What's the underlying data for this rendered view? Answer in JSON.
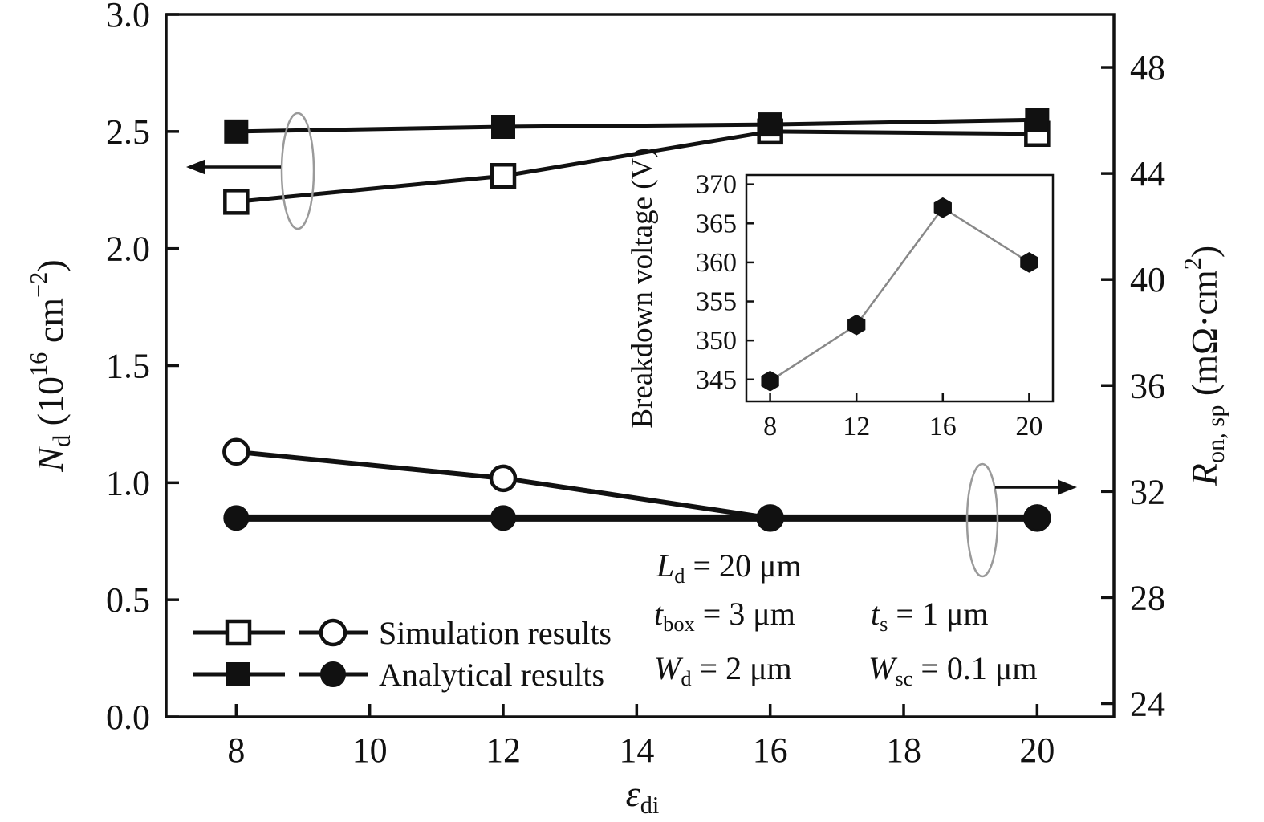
{
  "figure": {
    "background": "#ffffff",
    "ink": "#111111",
    "muted_outline": "#9a9a9a",
    "inset_line": "#888888"
  },
  "chart_data": [
    {
      "id": "main",
      "type": "line",
      "x_axis": {
        "label_segments": [
          {
            "t": "ε",
            "s": "i"
          },
          {
            "t": "di",
            "s": "sub"
          }
        ],
        "min": 6.95,
        "max": 21.15,
        "ticks": [
          "8",
          "10",
          "12",
          "14",
          "16",
          "18",
          "20"
        ]
      },
      "y_left": {
        "label_segments": [
          {
            "t": "N",
            "s": "i"
          },
          {
            "t": "d",
            "s": "sub"
          },
          {
            "t": " (10",
            "s": "n"
          },
          {
            "t": "16",
            "s": "sup"
          },
          {
            "t": " cm",
            "s": "n"
          },
          {
            "t": "−2",
            "s": "sup"
          },
          {
            "t": ")",
            "s": "n"
          }
        ],
        "min": 0,
        "max": 3,
        "ticks": [
          "0.0",
          "0.5",
          "1.0",
          "1.5",
          "2.0",
          "2.5",
          "3.0"
        ]
      },
      "y_right": {
        "label_segments": [
          {
            "t": "R",
            "s": "i"
          },
          {
            "t": "on, sp",
            "s": "sub"
          },
          {
            "t": " (mΩ·cm",
            "s": "n"
          },
          {
            "t": "2",
            "s": "sup"
          },
          {
            "t": ")",
            "s": "n"
          }
        ],
        "min": 23.5,
        "max": 50,
        "ticks": [
          "24",
          "28",
          "32",
          "36",
          "40",
          "44",
          "48"
        ]
      },
      "series": [
        {
          "name": "nd-simulation",
          "axis": "left",
          "marker": "square-open",
          "line_width": 5,
          "x": [
            8,
            12,
            16,
            20
          ],
          "y": [
            2.2,
            2.31,
            2.5,
            2.49
          ]
        },
        {
          "name": "nd-analytical",
          "axis": "left",
          "marker": "square-filled",
          "line_width": 5,
          "x": [
            8,
            12,
            16,
            20
          ],
          "y": [
            2.5,
            2.52,
            2.53,
            2.55
          ]
        },
        {
          "name": "ron-simulation",
          "axis": "right",
          "marker": "circle-open",
          "line_width": 6,
          "x": [
            8,
            12,
            16,
            20
          ],
          "y": [
            33.5,
            32.5,
            31.0,
            31.0
          ]
        },
        {
          "name": "ron-analytical",
          "axis": "right",
          "marker": "circle-filled",
          "line_width": 9,
          "x": [
            8,
            12,
            16,
            20
          ],
          "y": [
            31.0,
            31.0,
            31.0,
            31.0
          ]
        }
      ],
      "legend": [
        {
          "markers": [
            "square-open",
            "circle-open"
          ],
          "label": "Simulation results"
        },
        {
          "markers": [
            "square-filled",
            "circle-filled"
          ],
          "label": "Analytical results"
        }
      ],
      "annotations": [
        [
          {
            "t": "L",
            "s": "i"
          },
          {
            "t": "d",
            "s": "sub"
          },
          {
            "t": " = 20 μm",
            "s": "n"
          }
        ],
        [
          {
            "t": "t",
            "s": "i"
          },
          {
            "t": "box",
            "s": "sub"
          },
          {
            "t": " = 3 μm",
            "s": "n"
          }
        ],
        [
          {
            "t": "t",
            "s": "i"
          },
          {
            "t": "s",
            "s": "sub"
          },
          {
            "t": " = 1 μm",
            "s": "n"
          }
        ],
        [
          {
            "t": "W",
            "s": "i"
          },
          {
            "t": "d",
            "s": "sub"
          },
          {
            "t": " = 2 μm",
            "s": "n"
          }
        ],
        [
          {
            "t": "W",
            "s": "i"
          },
          {
            "t": "sc",
            "s": "sub"
          },
          {
            "t": " = 0.1 μm",
            "s": "n"
          }
        ]
      ],
      "axis_indicators": [
        {
          "series_group": "squares",
          "points_to": "left-axis"
        },
        {
          "series_group": "circles",
          "points_to": "right-axis"
        }
      ]
    },
    {
      "id": "inset",
      "type": "line",
      "x_axis": {
        "min": 6.9,
        "max": 21.1,
        "ticks": [
          "8",
          "12",
          "16",
          "20"
        ]
      },
      "y_axis": {
        "label": "Breakdown voltage (V)",
        "min": 342.2,
        "max": 371.2,
        "ticks": [
          "345",
          "350",
          "355",
          "360",
          "365",
          "370"
        ]
      },
      "series": [
        {
          "name": "breakdown-voltage",
          "marker": "hex-filled",
          "line_width": 2.5,
          "x": [
            8,
            12,
            16,
            20
          ],
          "y": [
            344.8,
            352,
            367,
            360
          ]
        }
      ]
    }
  ]
}
